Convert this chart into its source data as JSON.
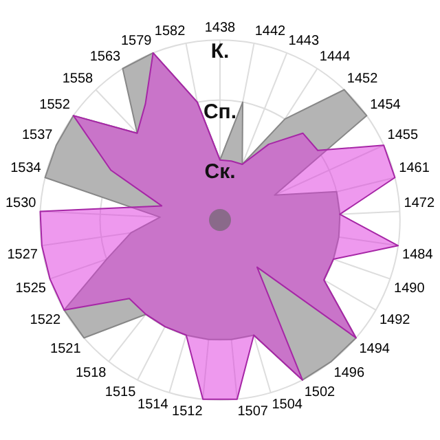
{
  "chart_data": {
    "type": "radar",
    "categories": [
      "1438",
      "1442",
      "1443",
      "1444",
      "1452",
      "1454",
      "1455",
      "1461",
      "1472",
      "1484",
      "1490",
      "1492",
      "1494",
      "1496",
      "1502",
      "1504",
      "1507",
      "1512",
      "1514",
      "1515",
      "1518",
      "1521",
      "1522",
      "1525",
      "1527",
      "1530",
      "1534",
      "1537",
      "1552",
      "1558",
      "1563",
      "1579",
      "1582"
    ],
    "series": [
      {
        "color": "#b4b4b4",
        "values": [
          1,
          2,
          1,
          2,
          3,
          3,
          1,
          2,
          2,
          2,
          2,
          2,
          3,
          3,
          3,
          2,
          2,
          2,
          2,
          2,
          2,
          3,
          3,
          2,
          1.5,
          1,
          3,
          3,
          3,
          2,
          3,
          3,
          2
        ]
      },
      {
        "color": "#dd33dd",
        "values": [
          1,
          1,
          1,
          1.5,
          2,
          2,
          3,
          3,
          2,
          3,
          2,
          2,
          3,
          1,
          3,
          2,
          3,
          3,
          2,
          2,
          2,
          2,
          3,
          3,
          3,
          3,
          1,
          2,
          3,
          2,
          2.3,
          3,
          2
        ]
      }
    ],
    "ylim": [
      0,
      3
    ],
    "yticks": [
      {
        "value": 1,
        "label": "Ск."
      },
      {
        "value": 2,
        "label": "Сп."
      },
      {
        "value": 3,
        "label": "К."
      }
    ],
    "grid": true,
    "legend": false
  }
}
